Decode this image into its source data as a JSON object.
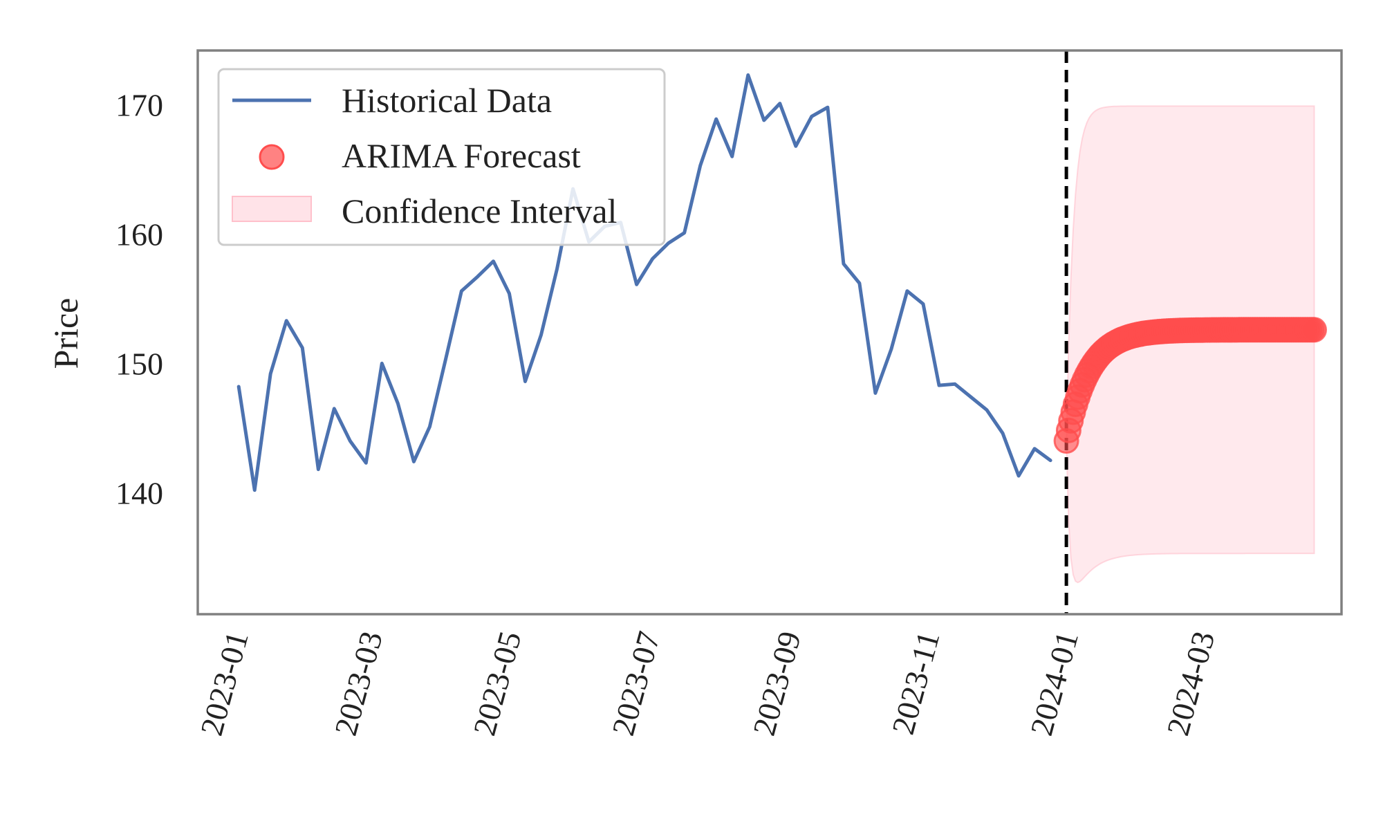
{
  "chart_data": {
    "type": "line",
    "title": "",
    "xlabel": "",
    "ylabel": "Price",
    "xlim": [
      "2022-12-14",
      "2024-04-30"
    ],
    "ylim": [
      130.6,
      174.2
    ],
    "x_ticks": [
      "2023-01",
      "2023-03",
      "2023-05",
      "2023-07",
      "2023-09",
      "2023-11",
      "2024-01",
      "2024-03"
    ],
    "y_ticks": [
      140,
      150,
      160,
      170
    ],
    "grid": false,
    "legend_position": "top-left",
    "forecast_start": "2023-12-31",
    "series": [
      {
        "name": "Historical Data",
        "kind": "line",
        "color": "#4c72b0",
        "points": [
          [
            "2023-01-01",
            148.2
          ],
          [
            "2023-01-08",
            140.2
          ],
          [
            "2023-01-15",
            149.2
          ],
          [
            "2023-01-22",
            153.3
          ],
          [
            "2023-01-29",
            151.2
          ],
          [
            "2023-02-05",
            141.8
          ],
          [
            "2023-02-12",
            146.5
          ],
          [
            "2023-02-19",
            144.0
          ],
          [
            "2023-02-26",
            142.3
          ],
          [
            "2023-03-05",
            150.0
          ],
          [
            "2023-03-12",
            146.9
          ],
          [
            "2023-03-19",
            142.4
          ],
          [
            "2023-03-26",
            145.1
          ],
          [
            "2023-04-02",
            150.3
          ],
          [
            "2023-04-09",
            155.6
          ],
          [
            "2023-04-16",
            156.7
          ],
          [
            "2023-04-23",
            157.9
          ],
          [
            "2023-04-30",
            155.4
          ],
          [
            "2023-05-07",
            148.6
          ],
          [
            "2023-05-14",
            152.2
          ],
          [
            "2023-05-21",
            157.3
          ],
          [
            "2023-05-28",
            163.5
          ],
          [
            "2023-06-04",
            159.4
          ],
          [
            "2023-06-11",
            160.6
          ],
          [
            "2023-06-18",
            160.9
          ],
          [
            "2023-06-25",
            156.1
          ],
          [
            "2023-07-02",
            158.1
          ],
          [
            "2023-07-09",
            159.3
          ],
          [
            "2023-07-16",
            160.1
          ],
          [
            "2023-07-23",
            165.3
          ],
          [
            "2023-07-30",
            168.9
          ],
          [
            "2023-08-06",
            166.0
          ],
          [
            "2023-08-13",
            172.3
          ],
          [
            "2023-08-20",
            168.8
          ],
          [
            "2023-08-27",
            170.1
          ],
          [
            "2023-09-03",
            166.8
          ],
          [
            "2023-09-10",
            169.1
          ],
          [
            "2023-09-17",
            169.8
          ],
          [
            "2023-09-24",
            157.7
          ],
          [
            "2023-10-01",
            156.2
          ],
          [
            "2023-10-08",
            147.7
          ],
          [
            "2023-10-15",
            151.1
          ],
          [
            "2023-10-22",
            155.6
          ],
          [
            "2023-10-29",
            154.6
          ],
          [
            "2023-11-05",
            148.3
          ],
          [
            "2023-11-12",
            148.4
          ],
          [
            "2023-11-19",
            147.4
          ],
          [
            "2023-11-26",
            146.4
          ],
          [
            "2023-12-03",
            144.6
          ],
          [
            "2023-12-10",
            141.3
          ],
          [
            "2023-12-17",
            143.4
          ],
          [
            "2023-12-24",
            142.5
          ]
        ]
      },
      {
        "name": "ARIMA Forecast",
        "kind": "scatter",
        "color": "#ff4d4d",
        "start": "2023-12-31",
        "end": "2024-04-18",
        "frequency": "daily",
        "initial_value": 144.0,
        "final_value": 152.6,
        "convergence_days": 40
      },
      {
        "name": "Confidence Interval",
        "kind": "band",
        "color": "#ffc0cb",
        "start": "2023-12-31",
        "end": "2024-04-18",
        "initial_lower": 144.0,
        "initial_upper": 144.0,
        "lower_min": 132.6,
        "final_lower": 135.3,
        "final_upper": 169.9
      }
    ]
  }
}
